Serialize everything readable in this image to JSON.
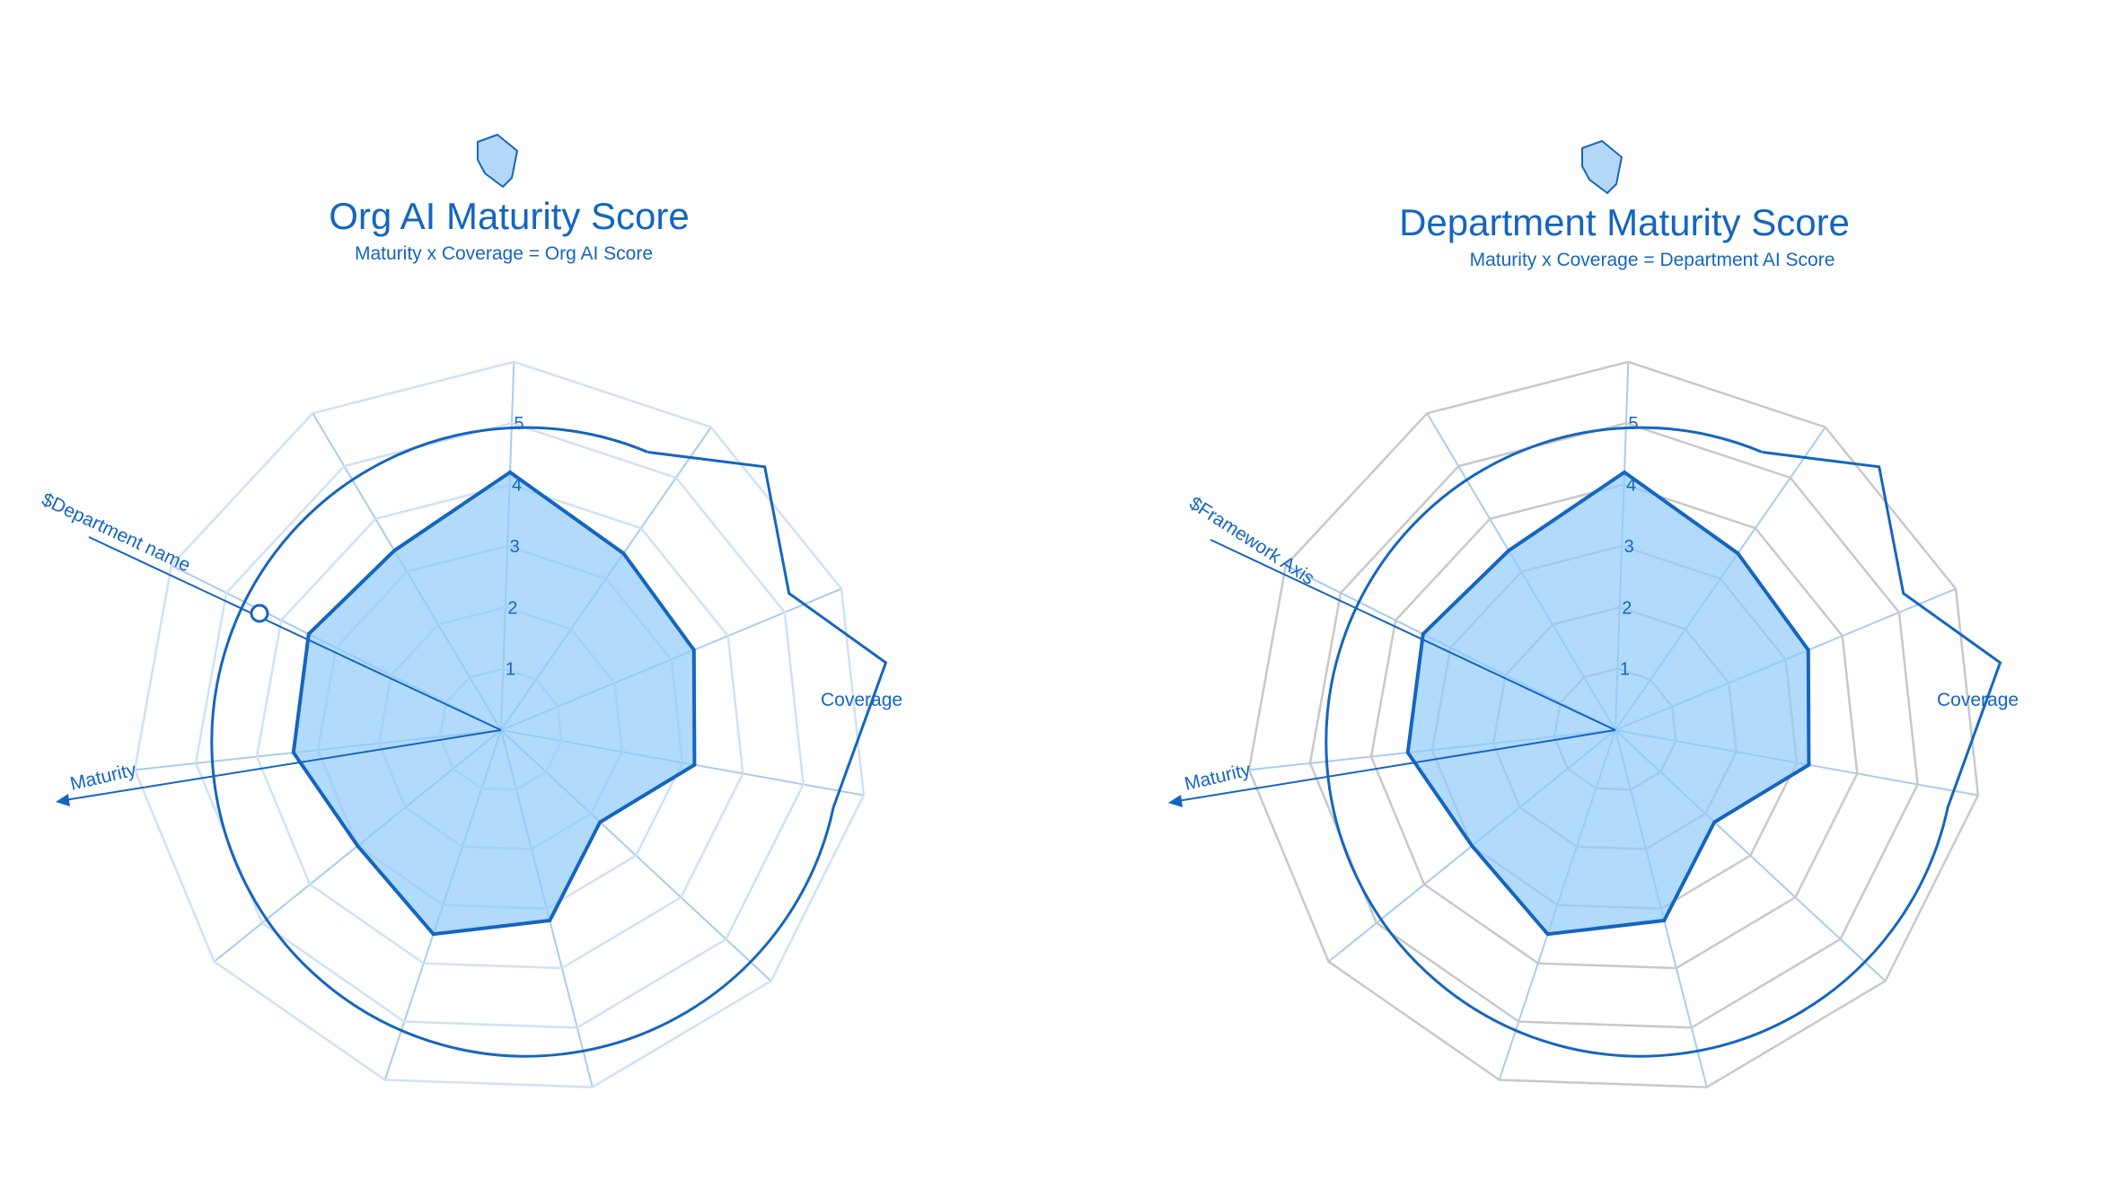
{
  "colors": {
    "accent": "#1565c0",
    "fill": "#90caf9",
    "spoke": "#a9cbee",
    "grid_light": "#cfe1f5",
    "grid_gray": "#c8c8c8"
  },
  "chart_data": [
    {
      "type": "radar",
      "title": "Org AI Maturity Score",
      "subtitle": "Maturity x Coverage = Org AI Score",
      "icon": "shield-icon",
      "axis_labels": [
        "$Department name",
        "Coverage",
        "Maturity"
      ],
      "ticks": [
        "1",
        "2",
        "3",
        "4",
        "5"
      ],
      "rlim": [
        0,
        5
      ],
      "grid_color": "light-blue",
      "values": [
        4.2,
        3.5,
        3.4,
        3.2,
        2.2,
        3.2,
        3.5,
        3.0,
        3.4,
        3.5,
        3.4
      ]
    },
    {
      "type": "radar",
      "title": "Department Maturity Score",
      "subtitle": "Maturity x Coverage = Department AI Score",
      "icon": "shield-icon",
      "axis_labels": [
        "$Framework Axis",
        "Coverage",
        "Maturity"
      ],
      "ticks": [
        "1",
        "2",
        "3",
        "4",
        "5"
      ],
      "rlim": [
        0,
        5
      ],
      "grid_color": "gray",
      "values": [
        4.2,
        3.5,
        3.4,
        3.2,
        2.2,
        3.2,
        3.5,
        3.0,
        3.4,
        3.5,
        3.4
      ]
    }
  ]
}
